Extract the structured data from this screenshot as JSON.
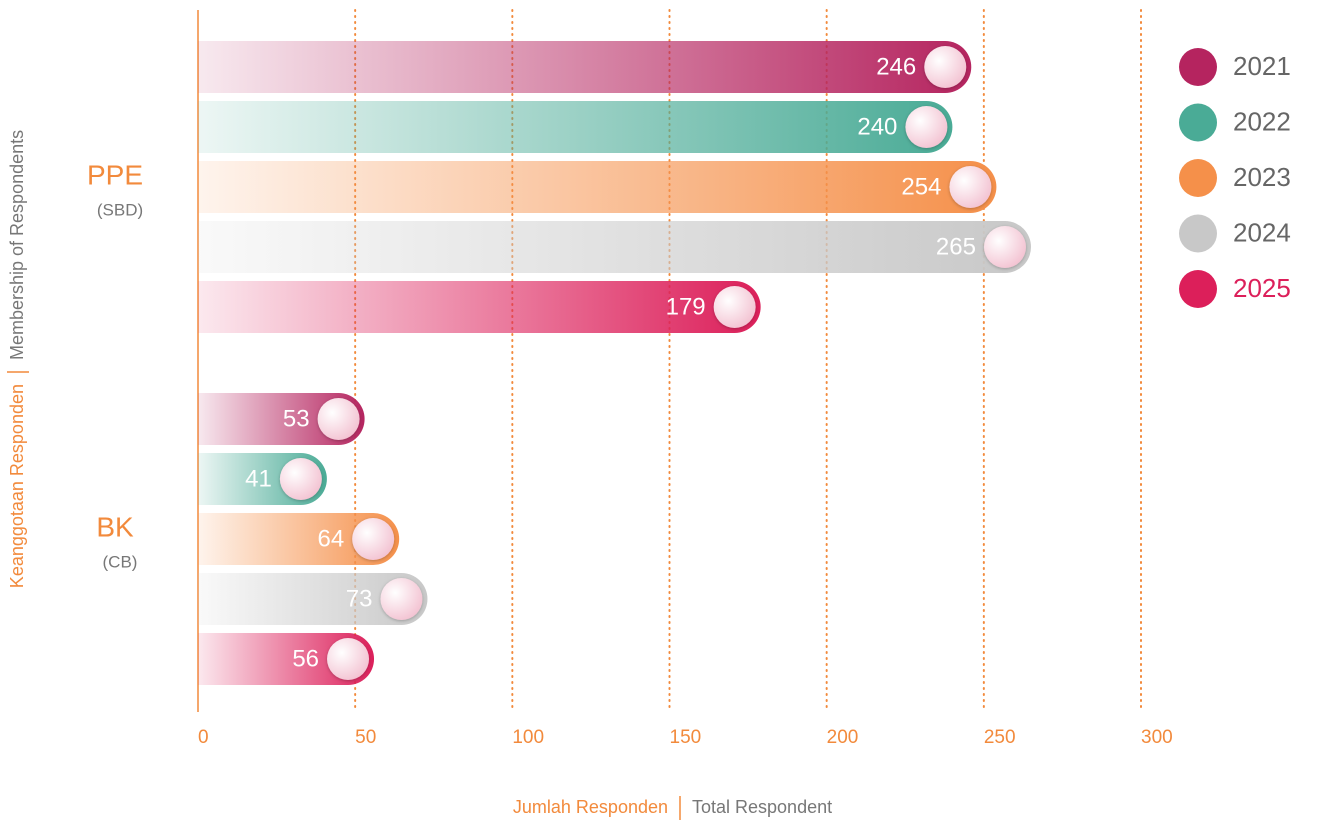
{
  "chart_data": {
    "type": "bar",
    "orientation": "horizontal",
    "categories": [
      "PPE",
      "BK"
    ],
    "category_sublabels": [
      "(SBD)",
      "(CB)"
    ],
    "xlabel": {
      "local": "Jumlah Responden",
      "english": "Total Respondent"
    },
    "ylabel": {
      "local": "Keanggotaan Responden",
      "english": "Membership of Respondents"
    },
    "xlim": [
      0,
      300
    ],
    "xticks": [
      0,
      50,
      100,
      150,
      200,
      250,
      300
    ],
    "grid": true,
    "legend": "top-right",
    "series": [
      {
        "name": "2021",
        "color": "#b5245f",
        "legend_text_color": "#666666",
        "values": [
          246,
          53
        ]
      },
      {
        "name": "2022",
        "color": "#4aab96",
        "legend_text_color": "#666666",
        "values": [
          240,
          41
        ]
      },
      {
        "name": "2023",
        "color": "#f5904a",
        "legend_text_color": "#666666",
        "values": [
          254,
          64
        ]
      },
      {
        "name": "2024",
        "color": "#c8c8c8",
        "legend_text_color": "#666666",
        "values": [
          265,
          73
        ]
      },
      {
        "name": "2025",
        "color": "#dc1f5a",
        "legend_text_color": "#dc1f5a",
        "values": [
          179,
          56
        ]
      }
    ]
  }
}
